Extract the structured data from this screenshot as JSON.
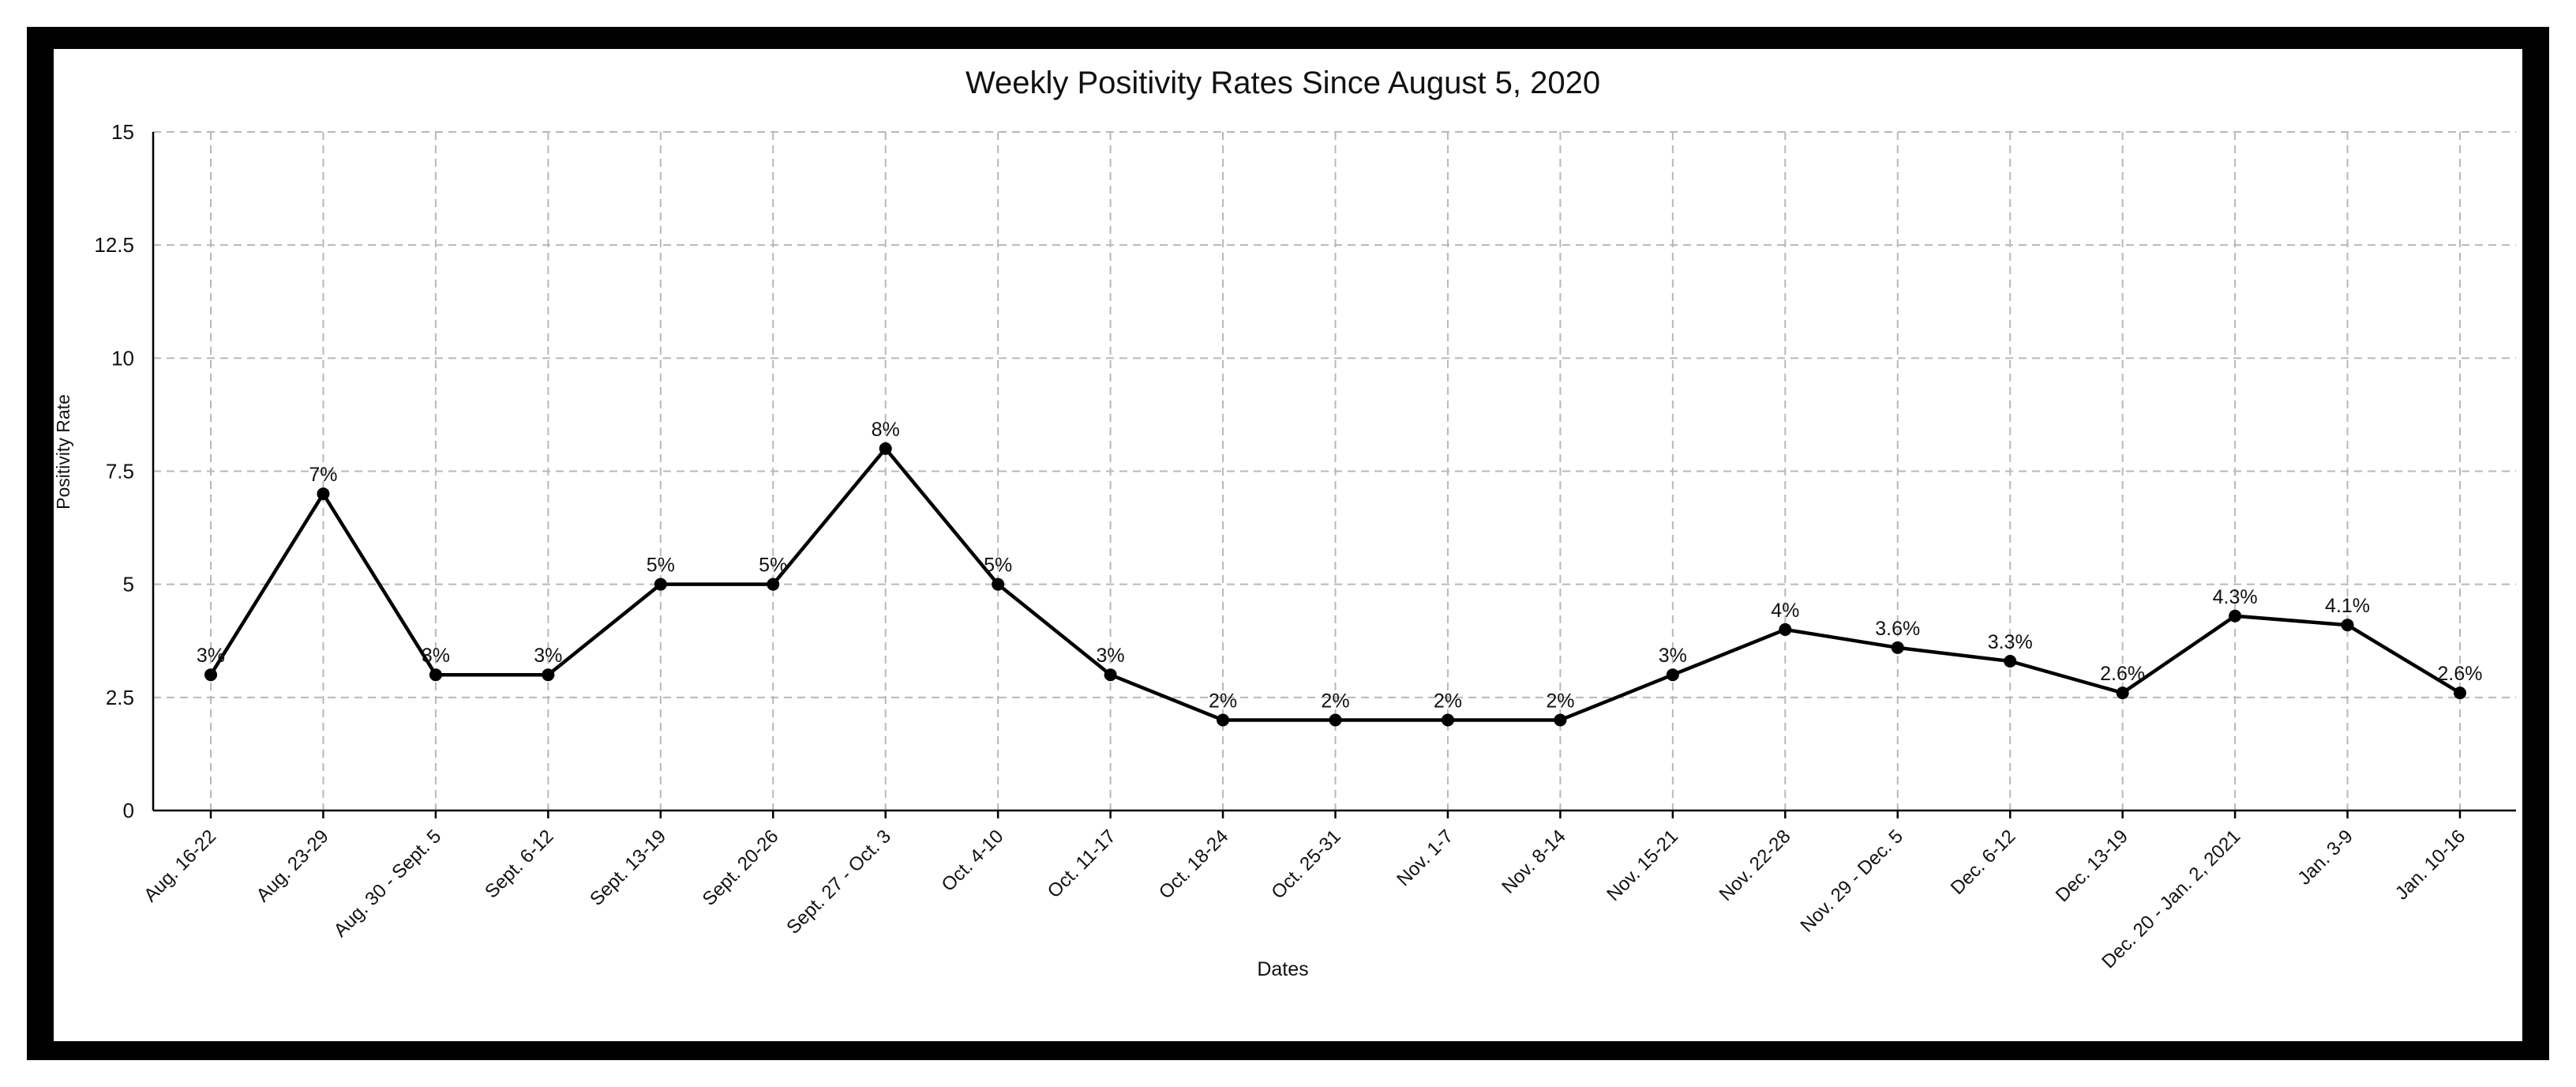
{
  "chart_data": {
    "type": "line",
    "title": "Weekly Positivity Rates Since August 5, 2020",
    "xlabel": "Dates",
    "ylabel": "Positivity Rate",
    "ylim": [
      0,
      15
    ],
    "yticks": [
      "0",
      "2.5",
      "5",
      "7.5",
      "10",
      "12.5",
      "15"
    ],
    "grid": true,
    "colors": {
      "frame": "#000000",
      "background": "#ffffff",
      "line": "#000000",
      "grid": "#b8b8b8"
    },
    "categories": [
      "Aug. 16-22",
      "Aug. 23-29",
      "Aug. 30 - Sept. 5",
      "Sept. 6-12",
      "Sept. 13-19",
      "Sept. 20-26",
      "Sept. 27 - Oct. 3",
      "Oct. 4-10",
      "Oct. 11-17",
      "Oct. 18-24",
      "Oct. 25-31",
      "Nov. 1-7",
      "Nov. 8-14",
      "Nov. 15-21",
      "Nov. 22-28",
      "Nov. 29 - Dec. 5",
      "Dec. 6-12",
      "Dec. 13-19",
      "Dec. 20 - Jan. 2, 2021",
      "Jan. 3-9",
      "Jan. 10-16"
    ],
    "values": [
      3,
      7,
      3,
      3,
      5,
      5,
      8,
      5,
      3,
      2,
      2,
      2,
      2,
      3,
      4,
      3.6,
      3.3,
      2.6,
      4.3,
      4.1,
      2.6
    ],
    "data_labels": [
      "3%",
      "7%",
      "3%",
      "3%",
      "5%",
      "5%",
      "8%",
      "5%",
      "3%",
      "2%",
      "2%",
      "2%",
      "2%",
      "3%",
      "4%",
      "3.6%",
      "3.3%",
      "2.6%",
      "4.3%",
      "4.1%",
      "2.6%"
    ]
  }
}
